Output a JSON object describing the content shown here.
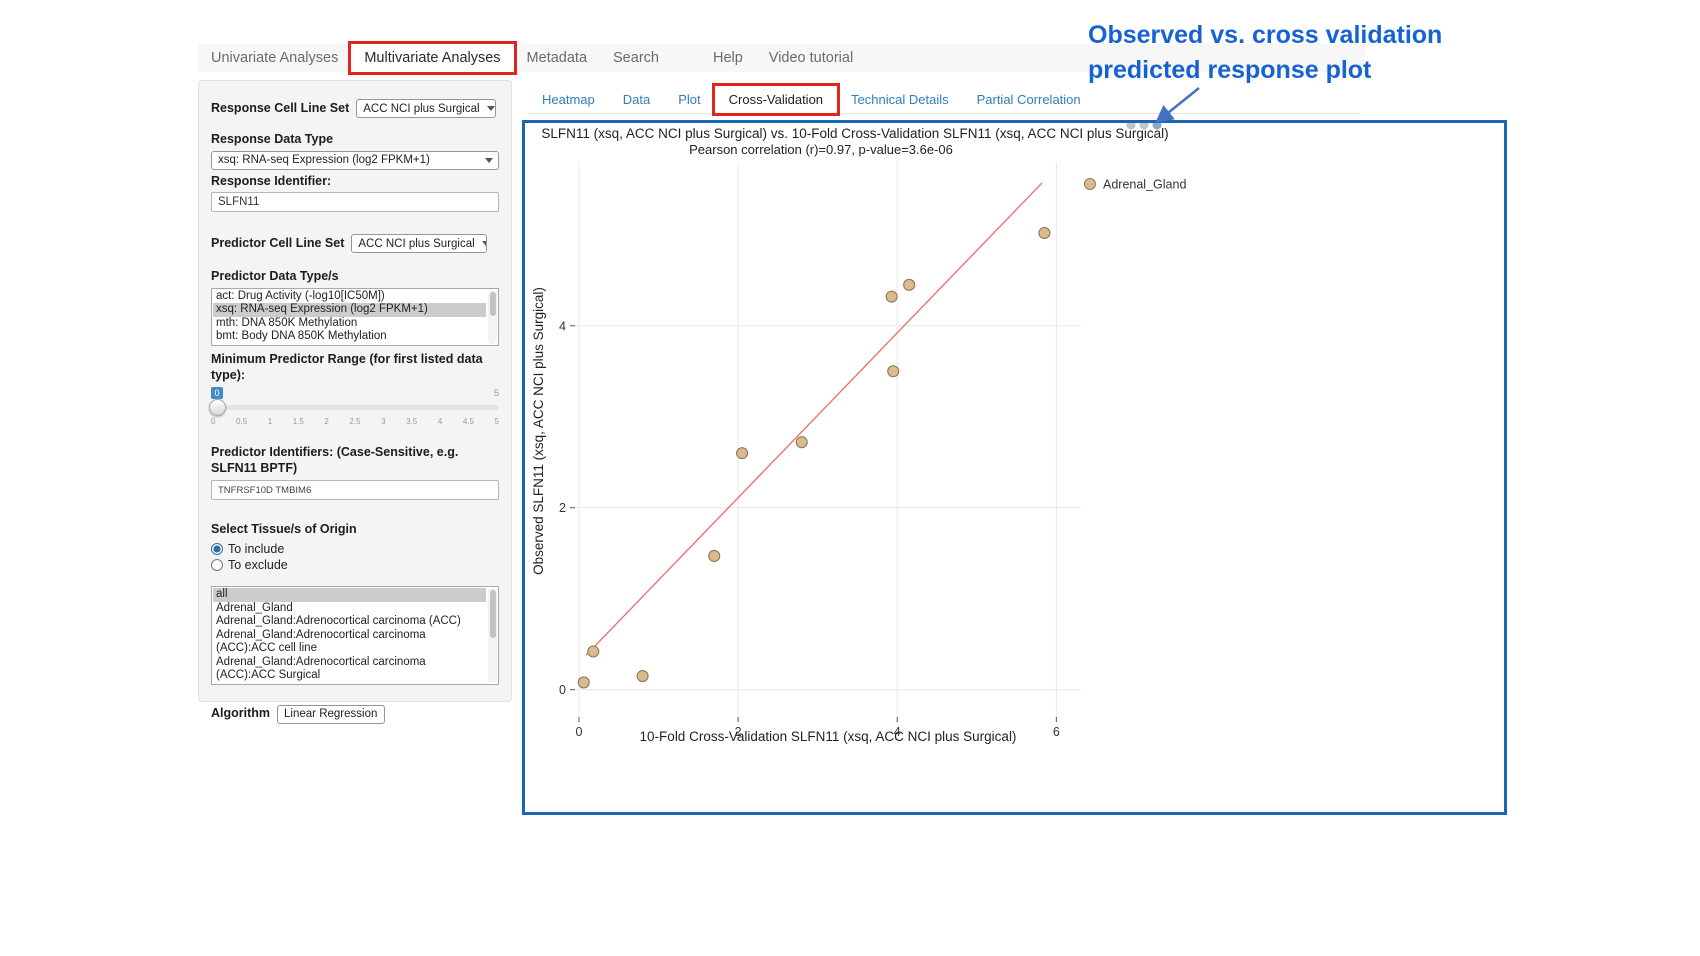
{
  "colors": {
    "highlight_red": "#e3241d",
    "panel_border_blue": "#1b65b5",
    "annotation_blue": "#1563d2",
    "link_blue": "#2e7ebf",
    "slider_badge_blue": "#428bca"
  },
  "nav": {
    "items": [
      {
        "label": "Univariate Analyses",
        "active": false,
        "highlighted": false
      },
      {
        "label": "Multivariate Analyses",
        "active": true,
        "highlighted": true
      },
      {
        "label": "Metadata",
        "active": false,
        "highlighted": false
      },
      {
        "label": "Search",
        "active": false,
        "highlighted": false
      },
      {
        "label": "Help",
        "active": false,
        "highlighted": false
      },
      {
        "label": "Video tutorial",
        "active": false,
        "highlighted": false
      }
    ]
  },
  "sidebar": {
    "response_cell_line_set": {
      "label": "Response Cell Line Set",
      "value": "ACC NCI plus Surgical"
    },
    "response_data_type": {
      "label": "Response Data Type",
      "value": "xsq: RNA-seq Expression (log2 FPKM+1)"
    },
    "response_identifier": {
      "label": "Response Identifier:",
      "value": "SLFN11"
    },
    "predictor_cell_line_set": {
      "label": "Predictor Cell Line Set",
      "value": "ACC NCI plus Surgical"
    },
    "predictor_data_types": {
      "label": "Predictor Data Type/s",
      "options": [
        {
          "label": "act: Drug Activity (-log10[IC50M])",
          "selected": false
        },
        {
          "label": "xsq: RNA-seq Expression (log2 FPKM+1)",
          "selected": true
        },
        {
          "label": "mth: DNA 850K Methylation",
          "selected": false
        },
        {
          "label": "bmt: Body DNA 850K Methylation",
          "selected": false
        }
      ]
    },
    "min_predictor_range": {
      "label": "Minimum Predictor Range (for first listed data type):",
      "value": "0",
      "max": "5",
      "ticks": [
        "0",
        "0.5",
        "1",
        "1.5",
        "2",
        "2.5",
        "3",
        "3.5",
        "4",
        "4.5",
        "5"
      ]
    },
    "predictor_identifiers": {
      "label": "Predictor Identifiers: (Case-Sensitive, e.g. SLFN11 BPTF)",
      "value": "TNFRSF10D TMBIM6"
    },
    "tissue_origin": {
      "label": "Select Tissue/s of Origin",
      "options": [
        {
          "label": "To include",
          "selected": true
        },
        {
          "label": "To exclude",
          "selected": false
        }
      ],
      "list": [
        {
          "label": "all",
          "selected": true
        },
        {
          "label": "Adrenal_Gland",
          "selected": false
        },
        {
          "label": "Adrenal_Gland:Adrenocortical carcinoma (ACC)",
          "selected": false
        },
        {
          "label": "Adrenal_Gland:Adrenocortical carcinoma (ACC):ACC cell line",
          "selected": false
        },
        {
          "label": "Adrenal_Gland:Adrenocortical carcinoma (ACC):ACC Surgical",
          "selected": false
        }
      ]
    },
    "algorithm": {
      "label": "Algorithm",
      "value": "Linear Regression"
    }
  },
  "subtabs": {
    "items": [
      {
        "label": "Heatmap",
        "active": false,
        "highlighted": false
      },
      {
        "label": "Data",
        "active": false,
        "highlighted": false
      },
      {
        "label": "Plot",
        "active": false,
        "highlighted": false
      },
      {
        "label": "Cross-Validation",
        "active": true,
        "highlighted": true
      },
      {
        "label": "Technical Details",
        "active": false,
        "highlighted": false
      },
      {
        "label": "Partial Correlation",
        "active": false,
        "highlighted": false
      }
    ]
  },
  "annotation": {
    "line1": "Observed vs. cross validation",
    "line2": "predicted response plot"
  },
  "chart_data": {
    "type": "scatter",
    "title": "SLFN11 (xsq, ACC NCI plus Surgical) vs. 10-Fold Cross-Validation SLFN11 (xsq, ACC NCI plus Surgical)",
    "subtitle": "Pearson correlation (r)=0.97, p-value=3.6e-06",
    "xlabel": "10-Fold Cross-Validation SLFN11 (xsq, ACC NCI plus Surgical)",
    "ylabel": "Observed SLFN11 (xsq, ACC NCI plus Surgical)",
    "xlim": [
      -0.05,
      6.31
    ],
    "ylim": [
      -0.3,
      5.8
    ],
    "xticks": [
      0,
      2,
      4,
      6
    ],
    "yticks": [
      0,
      2,
      4
    ],
    "grid": true,
    "legend_position": "right",
    "legend": [
      {
        "label": "Adrenal_Gland",
        "color": "#d9bb8f"
      }
    ],
    "series": [
      {
        "name": "Adrenal_Gland",
        "points": [
          {
            "x": 0.06,
            "y": 0.08
          },
          {
            "x": 0.18,
            "y": 0.42
          },
          {
            "x": 0.8,
            "y": 0.15
          },
          {
            "x": 1.7,
            "y": 1.47
          },
          {
            "x": 2.05,
            "y": 2.6
          },
          {
            "x": 2.8,
            "y": 2.72
          },
          {
            "x": 3.95,
            "y": 3.5
          },
          {
            "x": 3.93,
            "y": 4.32
          },
          {
            "x": 4.15,
            "y": 4.45
          },
          {
            "x": 5.85,
            "y": 5.02
          }
        ]
      }
    ],
    "regression_line": {
      "x1": 0.09,
      "y1": 0.38,
      "x2": 5.82,
      "y2": 5.57,
      "color": "#ee7272"
    },
    "point_style": {
      "fill": "#d9bb8f",
      "stroke": "#8f7a57",
      "radius": 5.5
    }
  }
}
